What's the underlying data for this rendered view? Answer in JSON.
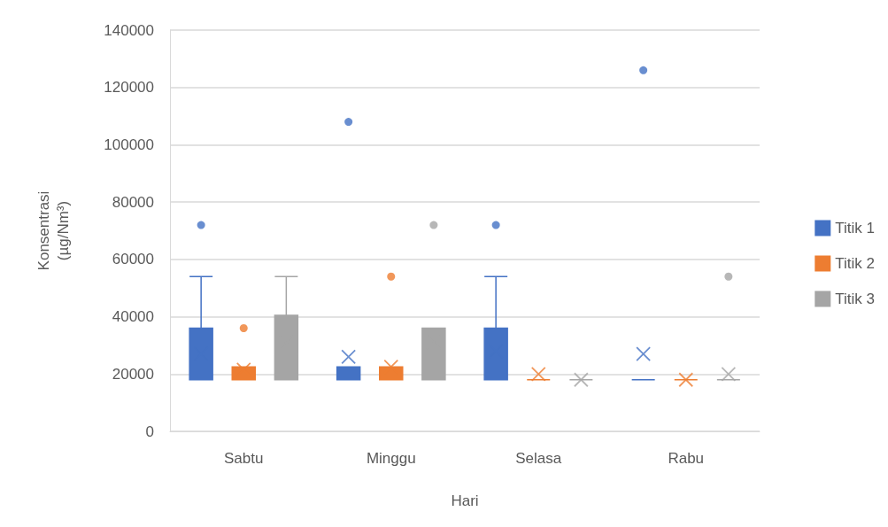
{
  "chart_data": {
    "type": "box",
    "xlabel": "Hari",
    "ylabel": "Konsentrasi\n(µg/Nm³)",
    "categories": [
      "Sabtu",
      "Minggu",
      "Selasa",
      "Rabu"
    ],
    "ylim": [
      0,
      140000
    ],
    "yticks": [
      0,
      20000,
      40000,
      60000,
      80000,
      100000,
      120000,
      140000
    ],
    "grid": "y",
    "legend": "right",
    "series": [
      {
        "name": "Titik 1",
        "color": "#4472c4",
        "boxes": [
          {
            "low": 18000,
            "q1": 18000,
            "median": 18000,
            "q3": 36000,
            "high": 54000,
            "mean": 27000,
            "outliers": [
              72000
            ]
          },
          {
            "low": 18000,
            "q1": 18000,
            "median": 18000,
            "q3": 22500,
            "high": 22500,
            "mean": 26000,
            "outliers": [
              108000
            ]
          },
          {
            "low": 18000,
            "q1": 18000,
            "median": 18000,
            "q3": 36000,
            "high": 54000,
            "mean": 28000,
            "outliers": [
              72000
            ]
          },
          {
            "low": 18000,
            "q1": 18000,
            "median": 18000,
            "q3": 18000,
            "high": 18000,
            "mean": 27000,
            "outliers": [
              126000
            ]
          }
        ]
      },
      {
        "name": "Titik 2",
        "color": "#ed7d31",
        "boxes": [
          {
            "low": 18000,
            "q1": 18000,
            "median": 18000,
            "q3": 22500,
            "high": 22500,
            "mean": 21500,
            "outliers": [
              36000
            ]
          },
          {
            "low": 18000,
            "q1": 18000,
            "median": 18000,
            "q3": 22500,
            "high": 22500,
            "mean": 22500,
            "outliers": [
              54000
            ]
          },
          {
            "low": 18000,
            "q1": 18000,
            "median": 18000,
            "q3": 18000,
            "high": 18000,
            "mean": 20000
          },
          {
            "low": 18000,
            "q1": 18000,
            "median": 18000,
            "q3": 18000,
            "high": 18000,
            "mean": 18000
          }
        ]
      },
      {
        "name": "Titik 3",
        "color": "#a5a5a5",
        "boxes": [
          {
            "low": 18000,
            "q1": 18000,
            "median": 27000,
            "q3": 40500,
            "high": 54000,
            "mean": 31000
          },
          {
            "low": 18000,
            "q1": 18000,
            "median": 18000,
            "q3": 36000,
            "high": 36000,
            "mean": 31000,
            "outliers": [
              72000
            ]
          },
          {
            "low": 18000,
            "q1": 18000,
            "median": 18000,
            "q3": 18000,
            "high": 18000,
            "mean": 18000
          },
          {
            "low": 18000,
            "q1": 18000,
            "median": 18000,
            "q3": 18000,
            "high": 18000,
            "mean": 20000,
            "outliers": [
              54000
            ]
          }
        ]
      }
    ]
  }
}
